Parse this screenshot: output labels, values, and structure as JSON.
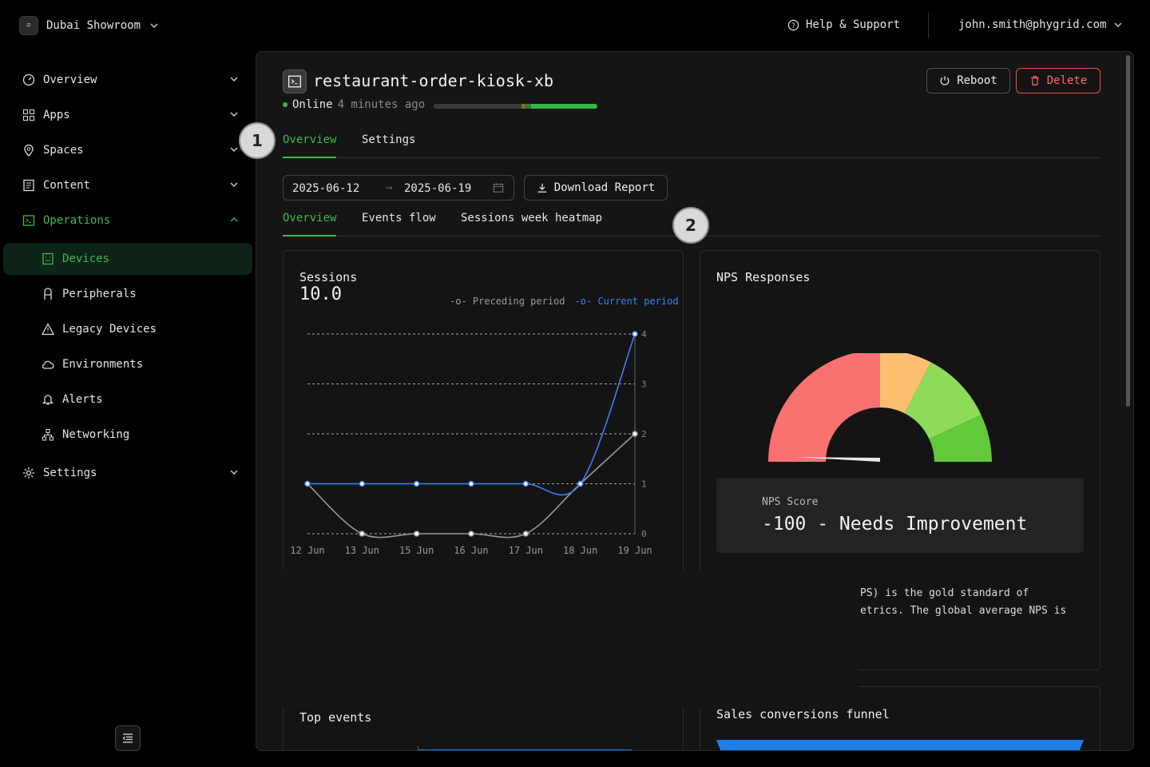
{
  "workspace": {
    "name": "Dubai Showroom"
  },
  "header": {
    "help": "Help & Support",
    "user": "john.smith@phygrid.com"
  },
  "sidebar": {
    "items": [
      {
        "label": "Overview",
        "icon": "gauge-icon"
      },
      {
        "label": "Apps",
        "icon": "grid-icon"
      },
      {
        "label": "Spaces",
        "icon": "map-pin-icon"
      },
      {
        "label": "Content",
        "icon": "content-icon"
      },
      {
        "label": "Operations",
        "icon": "terminal-icon"
      },
      {
        "label": "Devices",
        "icon": "device-icon"
      },
      {
        "label": "Peripherals",
        "icon": "peripheral-icon"
      },
      {
        "label": "Legacy Devices",
        "icon": "warning-icon"
      },
      {
        "label": "Environments",
        "icon": "cloud-icon"
      },
      {
        "label": "Alerts",
        "icon": "bell-icon"
      },
      {
        "label": "Networking",
        "icon": "network-icon"
      },
      {
        "label": "Settings",
        "icon": "gear-icon"
      }
    ]
  },
  "device": {
    "name": "restaurant-order-kiosk-xb",
    "status": "Online",
    "last_seen": "4 minutes ago"
  },
  "actions": {
    "reboot": "Reboot",
    "delete": "Delete"
  },
  "tabs": [
    "Overview",
    "Settings"
  ],
  "date_range": {
    "start": "2025-06-12",
    "end": "2025-06-19"
  },
  "download": "Download Report",
  "subtabs": [
    "Overview",
    "Events flow",
    "Sessions week heatmap"
  ],
  "sessions": {
    "title": "Sessions",
    "value": "10.0",
    "legend_prev": "Preceding period",
    "legend_curr": "Current period"
  },
  "chart_data": {
    "type": "line",
    "title": "Sessions",
    "categories": [
      "12 Jun",
      "13 Jun",
      "15 Jun",
      "16 Jun",
      "17 Jun",
      "18 Jun",
      "19 Jun"
    ],
    "yticks": [
      "0",
      "1",
      "2",
      "3",
      "4"
    ],
    "ylim": [
      0,
      4
    ],
    "series": [
      {
        "name": "Preceding period",
        "color": "#9a9a9a",
        "values": [
          1,
          0,
          0,
          0,
          0,
          1,
          2
        ]
      },
      {
        "name": "Current period",
        "color": "#3b82f6",
        "values": [
          1,
          1,
          1,
          1,
          1,
          1,
          4
        ]
      }
    ]
  },
  "nps": {
    "title": "NPS Responses",
    "score_label": "NPS Score",
    "score": "-100 - Needs Improvement",
    "desc1": "PS) is the gold standard of",
    "desc2": "etrics. The global average NPS is"
  },
  "top_events": {
    "title": "Top events"
  },
  "funnel": {
    "title": "Sales conversions funnel"
  },
  "annotations": [
    "1",
    "2"
  ]
}
